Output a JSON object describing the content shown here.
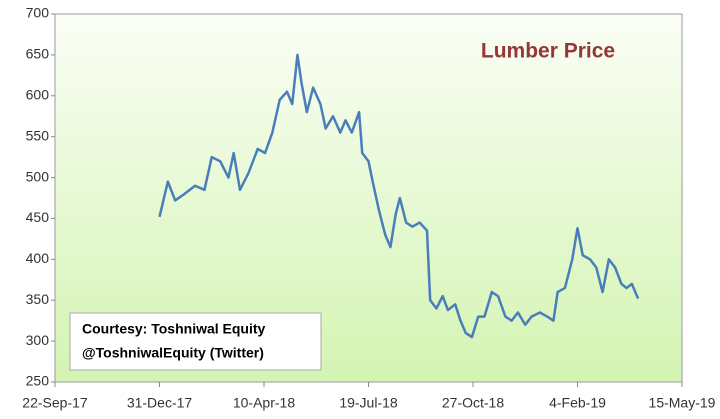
{
  "chart_data": {
    "type": "line",
    "title": "Lumber Price",
    "title_color": "#953735",
    "annotations": [
      "Courtesy: Toshniwal Equity",
      "@ToshniwalEquity (Twitter)"
    ],
    "x": [
      "2017-12-31",
      "2018-01-08",
      "2018-01-15",
      "2018-01-24",
      "2018-02-03",
      "2018-02-12",
      "2018-02-19",
      "2018-02-27",
      "2018-03-07",
      "2018-03-12",
      "2018-03-18",
      "2018-03-26",
      "2018-04-04",
      "2018-04-11",
      "2018-04-18",
      "2018-04-25",
      "2018-05-02",
      "2018-05-07",
      "2018-05-12",
      "2018-05-16",
      "2018-05-21",
      "2018-05-27",
      "2018-06-03",
      "2018-06-08",
      "2018-06-15",
      "2018-06-22",
      "2018-06-27",
      "2018-07-03",
      "2018-07-10",
      "2018-07-13",
      "2018-07-19",
      "2018-07-23",
      "2018-07-29",
      "2018-08-04",
      "2018-08-09",
      "2018-08-14",
      "2018-08-18",
      "2018-08-24",
      "2018-08-30",
      "2018-09-06",
      "2018-09-13",
      "2018-09-16",
      "2018-09-22",
      "2018-09-28",
      "2018-10-03",
      "2018-10-10",
      "2018-10-15",
      "2018-10-20",
      "2018-10-26",
      "2018-11-01",
      "2018-11-07",
      "2018-11-14",
      "2018-11-20",
      "2018-11-27",
      "2018-12-03",
      "2018-12-09",
      "2018-12-16",
      "2018-12-22",
      "2018-12-30",
      "2019-01-06",
      "2019-01-12",
      "2019-01-16",
      "2019-01-23",
      "2019-01-30",
      "2019-02-04",
      "2019-02-09",
      "2019-02-16",
      "2019-02-22",
      "2019-02-28",
      "2019-03-06",
      "2019-03-12",
      "2019-03-18",
      "2019-03-23",
      "2019-03-28",
      "2019-04-03"
    ],
    "series": [
      {
        "color": "#4a7ebb",
        "values": [
          452,
          495,
          472,
          480,
          490,
          485,
          525,
          520,
          500,
          530,
          485,
          505,
          535,
          530,
          555,
          595,
          605,
          590,
          650,
          615,
          580,
          610,
          590,
          560,
          575,
          555,
          570,
          555,
          580,
          530,
          520,
          495,
          460,
          430,
          415,
          455,
          475,
          445,
          440,
          445,
          435,
          350,
          340,
          355,
          338,
          345,
          325,
          310,
          305,
          330,
          330,
          360,
          355,
          330,
          325,
          335,
          320,
          330,
          335,
          330,
          325,
          360,
          365,
          400,
          438,
          405,
          400,
          390,
          360,
          400,
          390,
          370,
          365,
          370,
          352
        ]
      }
    ],
    "xlim": [
      "2017-09-22",
      "2019-05-15"
    ],
    "xticks": [
      {
        "value": "2017-09-22",
        "label": "22-Sep-17"
      },
      {
        "value": "2017-12-31",
        "label": "31-Dec-17"
      },
      {
        "value": "2018-04-10",
        "label": "10-Apr-18"
      },
      {
        "value": "2018-07-19",
        "label": "19-Jul-18"
      },
      {
        "value": "2018-10-27",
        "label": "27-Oct-18"
      },
      {
        "value": "2019-02-04",
        "label": "4-Feb-19"
      },
      {
        "value": "2019-05-15",
        "label": "15-May-19"
      }
    ],
    "ylim": [
      250,
      700
    ],
    "yticks": [
      250,
      300,
      350,
      400,
      450,
      500,
      550,
      600,
      650,
      700
    ],
    "grid": false
  }
}
